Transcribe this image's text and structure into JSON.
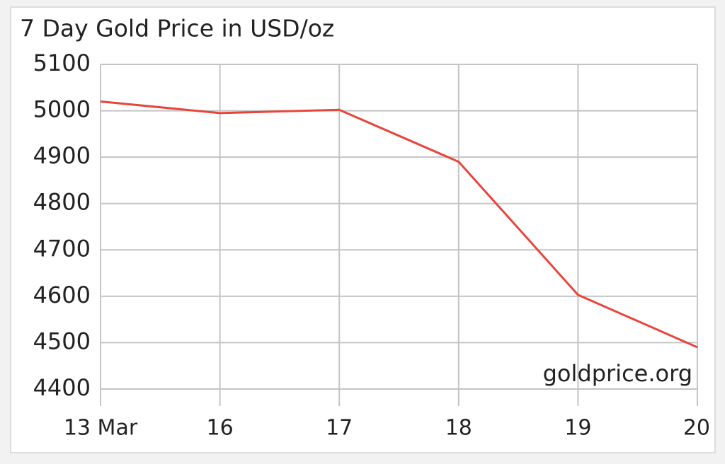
{
  "chart_data": {
    "type": "line",
    "title": "7 Day Gold Price in USD/oz",
    "categories": [
      "13 Mar",
      "16",
      "17",
      "18",
      "19",
      "20"
    ],
    "values": [
      5020,
      4995,
      5002,
      4890,
      4603,
      4490
    ],
    "color": "#e8453c",
    "ylim": [
      4400,
      5100
    ],
    "yticks": [
      4400,
      4500,
      4600,
      4700,
      4800,
      4900,
      5000,
      5100
    ],
    "grid": true,
    "watermark": "goldprice.org"
  }
}
